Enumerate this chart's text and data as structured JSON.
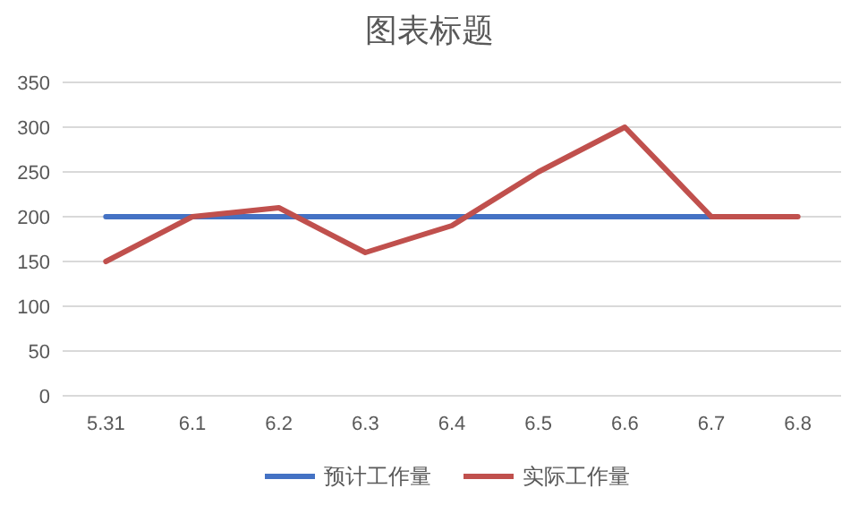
{
  "chart_data": {
    "type": "line",
    "title": "图表标题",
    "categories": [
      "5.31",
      "6.1",
      "6.2",
      "6.3",
      "6.4",
      "6.5",
      "6.6",
      "6.7",
      "6.8"
    ],
    "series": [
      {
        "name": "预计工作量",
        "color": "#4472c4",
        "values": [
          200,
          200,
          200,
          200,
          200,
          200,
          200,
          200,
          null
        ]
      },
      {
        "name": "实际工作量",
        "color": "#c0504d",
        "values": [
          150,
          200,
          210,
          160,
          190,
          250,
          300,
          200,
          200
        ]
      }
    ],
    "ylim": [
      0,
      350
    ],
    "yticks": [
      0,
      50,
      100,
      150,
      200,
      250,
      300,
      350
    ],
    "grid": "y",
    "legend": "bottom",
    "marker": "none",
    "line_style": "solid"
  }
}
